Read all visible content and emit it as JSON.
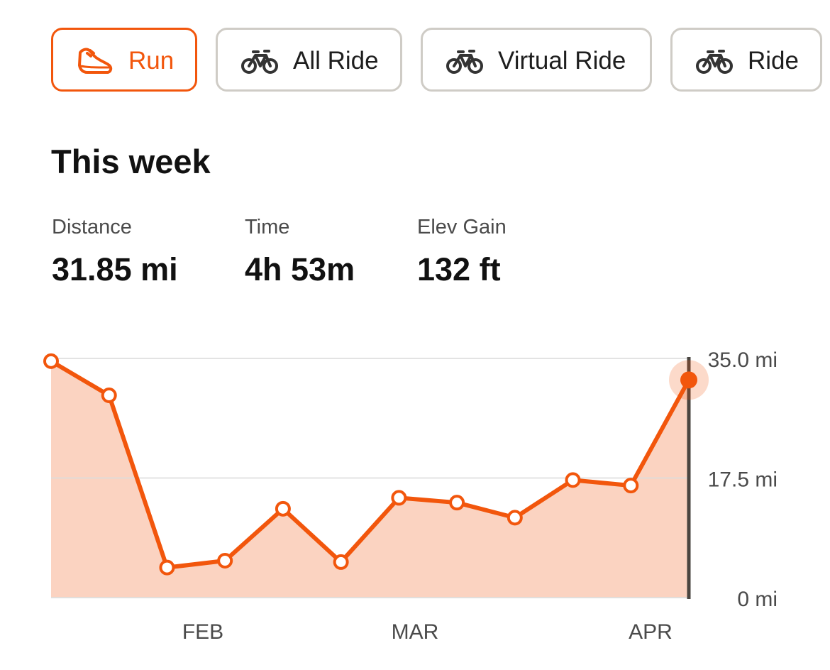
{
  "tabs": [
    {
      "label": "Run",
      "icon": "running-shoe-icon",
      "active": true
    },
    {
      "label": "All Ride",
      "icon": "bicycle-icon",
      "active": false
    },
    {
      "label": "Virtual Ride",
      "icon": "bicycle-icon",
      "active": false
    },
    {
      "label": "Ride",
      "icon": "bicycle-icon",
      "active": false
    }
  ],
  "heading": "This week",
  "stats": {
    "distance": {
      "label": "Distance",
      "value": "31.85 mi"
    },
    "time": {
      "label": "Time",
      "value": "4h 53m"
    },
    "elev_gain": {
      "label": "Elev Gain",
      "value": "132 ft"
    }
  },
  "colors": {
    "accent": "#f2560c",
    "area_fill": "#fbd3c1",
    "tab_border": "#cfccc6",
    "gridline": "#dddddd",
    "cursor_line": "#4a4540",
    "label_text": "#4a4a4a"
  },
  "chart_data": {
    "type": "area",
    "x_tick_labels": [
      "FEB",
      "MAR",
      "APR"
    ],
    "y_tick_labels": [
      "35.0 mi",
      "17.5 mi",
      "0 mi"
    ],
    "ylim": [
      0,
      35
    ],
    "grid": true,
    "series": [
      {
        "values": [
          34.6,
          29.6,
          4.4,
          5.4,
          13.0,
          5.2,
          14.6,
          13.9,
          11.7,
          17.2,
          16.4,
          31.85
        ]
      }
    ],
    "highlighted_index": 11
  }
}
